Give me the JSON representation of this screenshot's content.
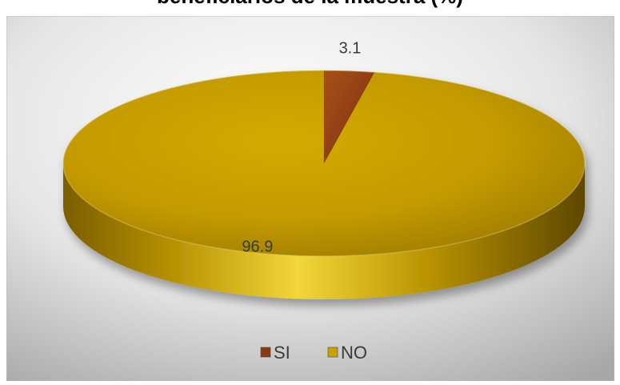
{
  "title": "beneficiarios de la muestra (%)",
  "colors": {
    "si": "#8B3A0F",
    "no": "#C9A200",
    "background": "#d9d9d9"
  },
  "chart_data": {
    "type": "pie",
    "title": "beneficiarios de la muestra (%)",
    "categories": [
      "SI",
      "NO"
    ],
    "values": [
      3.1,
      96.9
    ],
    "data_labels": [
      "3.1",
      "96.9"
    ],
    "legend": {
      "position": "bottom",
      "entries": [
        "SI",
        "NO"
      ]
    },
    "style": "3d"
  }
}
